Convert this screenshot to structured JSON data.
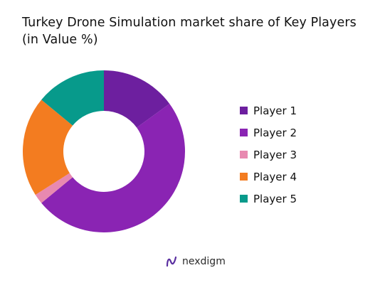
{
  "chart_data": {
    "type": "pie",
    "title": "Turkey Drone Simulation market share of Key Players (in Value %)",
    "categories": [
      "Player 1",
      "Player 2",
      "Player 3",
      "Player 4",
      "Player 5"
    ],
    "values": [
      15,
      49,
      2,
      20,
      14
    ],
    "colors": [
      "#6d1f9f",
      "#8a24b3",
      "#e889b0",
      "#f37c20",
      "#079a8b"
    ],
    "legend_position": "right"
  },
  "footer": {
    "brand": "nexdigm"
  }
}
